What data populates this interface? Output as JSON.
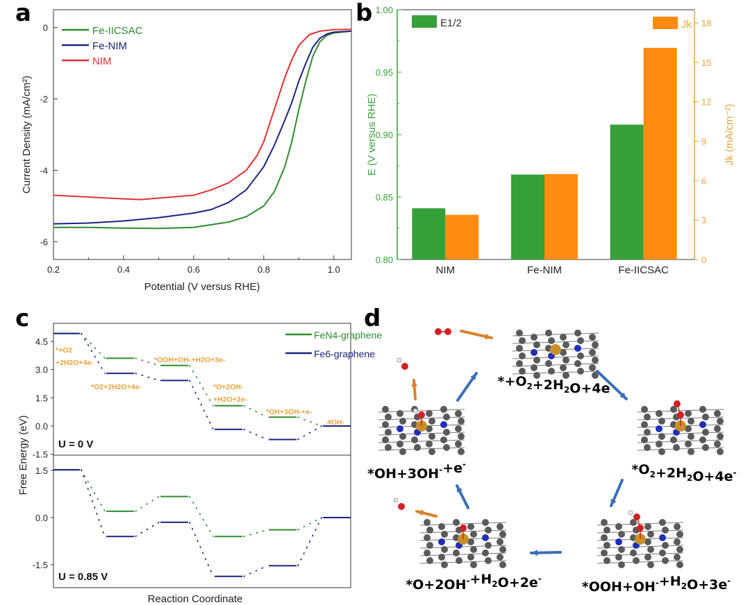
{
  "panel_labels": {
    "a": "a",
    "b": "b",
    "c": "c",
    "d": "d"
  },
  "chart_data": [
    {
      "id": "a",
      "type": "line",
      "title": "",
      "xlabel": "Potential (V versus RHE)",
      "ylabel": "Current Density (mA/cm²)",
      "xlim": [
        0.2,
        1.05
      ],
      "ylim": [
        -6.5,
        0.5
      ],
      "xticks": [
        "0.2",
        "0.4",
        "0.6",
        "0.8",
        "1.0"
      ],
      "xtick_values": [
        0.2,
        0.4,
        0.6,
        0.8,
        1.0
      ],
      "yticks": [
        "0",
        "-2",
        "-4",
        "-6"
      ],
      "ytick_values": [
        0,
        -2,
        -4,
        -6
      ],
      "legend_position": "top-left",
      "series": [
        {
          "name": "Fe-IICSAC",
          "color": "#2e8b2e",
          "x": [
            0.2,
            0.3,
            0.4,
            0.5,
            0.6,
            0.7,
            0.75,
            0.8,
            0.83,
            0.86,
            0.88,
            0.9,
            0.92,
            0.94,
            0.96,
            0.98,
            1.0,
            1.05
          ],
          "y": [
            -5.6,
            -5.6,
            -5.62,
            -5.63,
            -5.6,
            -5.45,
            -5.3,
            -5.0,
            -4.6,
            -3.9,
            -3.2,
            -2.3,
            -1.5,
            -0.8,
            -0.4,
            -0.22,
            -0.15,
            -0.1
          ]
        },
        {
          "name": "Fe-NIM",
          "color": "#1a237e",
          "x": [
            0.2,
            0.3,
            0.4,
            0.5,
            0.6,
            0.65,
            0.7,
            0.75,
            0.8,
            0.83,
            0.86,
            0.88,
            0.9,
            0.92,
            0.94,
            0.96,
            0.98,
            1.0,
            1.05
          ],
          "y": [
            -5.5,
            -5.48,
            -5.42,
            -5.33,
            -5.2,
            -5.1,
            -4.9,
            -4.55,
            -3.9,
            -3.3,
            -2.6,
            -2.1,
            -1.5,
            -1.0,
            -0.55,
            -0.3,
            -0.18,
            -0.13,
            -0.1
          ]
        },
        {
          "name": "NIM",
          "color": "#e03030",
          "x": [
            0.2,
            0.3,
            0.4,
            0.45,
            0.5,
            0.6,
            0.65,
            0.7,
            0.75,
            0.78,
            0.8,
            0.82,
            0.84,
            0.86,
            0.88,
            0.9,
            0.93,
            0.96,
            1.0,
            1.05
          ],
          "y": [
            -4.7,
            -4.75,
            -4.8,
            -4.82,
            -4.78,
            -4.7,
            -4.55,
            -4.35,
            -4.0,
            -3.6,
            -3.2,
            -2.6,
            -2.0,
            -1.4,
            -0.9,
            -0.5,
            -0.2,
            -0.1,
            -0.06,
            -0.05
          ]
        }
      ]
    },
    {
      "id": "b",
      "type": "bar",
      "title": "",
      "categories": [
        "NIM",
        "Fe-NIM",
        "Fe-IICSAC"
      ],
      "xlabel": "",
      "ylabel": "E (V versus RHE)",
      "ylabel2": "Jk (mA/cm⁻²)",
      "ylim": [
        0.8,
        1.0
      ],
      "ylim2": [
        0,
        19
      ],
      "yticks": [
        "0.80",
        "0.85",
        "0.90",
        "0.95",
        "1.00"
      ],
      "ytick_values": [
        0.8,
        0.85,
        0.9,
        0.95,
        1.0
      ],
      "yticks2": [
        "0",
        "3",
        "6",
        "9",
        "12",
        "15",
        "18"
      ],
      "ytick2_values": [
        0,
        3,
        6,
        9,
        12,
        15,
        18
      ],
      "legend_position": "top",
      "series": [
        {
          "name": "E1/2",
          "axis": "left",
          "color": "#36a03a",
          "values": [
            0.841,
            0.868,
            0.908
          ]
        },
        {
          "name": "Jk",
          "axis": "right",
          "color": "#ff8c10",
          "values": [
            3.4,
            6.5,
            16.1
          ]
        }
      ],
      "axis_colors": {
        "left": "#36a03a",
        "right": "#e8a33a"
      }
    },
    {
      "id": "c",
      "type": "line",
      "subtype": "free-energy-diagram",
      "xlabel": "Reaction Coordinate",
      "ylabel": "Free Energy (eV)",
      "legend_position": "top-right",
      "legend": [
        {
          "name": "FeN4-graphene",
          "color": "#2e8b2e"
        },
        {
          "name": "Fe6-graphene",
          "color": "#1a237e"
        }
      ],
      "steps": [
        "*+O2+2H2O+4e-",
        "*O2+2H2O+4e-",
        "*OOH+OH-+H2O+3e-",
        "*O+2OH-+H2O+2e-",
        "*OH+3OH-+e-",
        "4OH-"
      ],
      "step_annotations": [
        {
          "lines": [
            "*+O2",
            "+2H2O+4e-"
          ]
        },
        {
          "lines": [
            "*O2+2H2O+4e-"
          ]
        },
        {
          "lines": [
            "*OOH+OH-+H2O+3e-"
          ]
        },
        {
          "lines": [
            "*O+2OH-",
            "+H2O+2e-"
          ]
        },
        {
          "lines": [
            "*OH+3OH-+e-"
          ]
        },
        {
          "lines": [
            "4OH-"
          ]
        }
      ],
      "subplots": [
        {
          "label": "U = 0 V",
          "ylim": [
            -1.5,
            5.2
          ],
          "yticks": [
            "4.5",
            "3.0",
            "1.5",
            "0.0",
            "-1.5"
          ],
          "ytick_values": [
            4.5,
            3.0,
            1.5,
            0.0,
            -1.5
          ],
          "series": [
            {
              "name": "FeN4-graphene",
              "values": [
                4.92,
                3.6,
                3.22,
                1.08,
                0.47,
                0.0
              ]
            },
            {
              "name": "Fe6-graphene",
              "values": [
                4.92,
                2.8,
                2.42,
                -0.18,
                -0.72,
                0.0
              ]
            }
          ]
        },
        {
          "label": "U = 0.85 V",
          "ylim": [
            -2.25,
            1.75
          ],
          "yticks": [
            "1.5",
            "0.0",
            "-1.5"
          ],
          "ytick_values": [
            1.5,
            0.0,
            -1.5
          ],
          "series": [
            {
              "name": "FeN4-graphene",
              "values": [
                1.52,
                0.2,
                0.67,
                -0.6,
                -0.39,
                0.0
              ]
            },
            {
              "name": "Fe6-graphene",
              "values": [
                1.52,
                -0.6,
                -0.15,
                -1.87,
                -1.53,
                0.0
              ]
            }
          ]
        }
      ]
    }
  ],
  "mechanism": {
    "states": [
      {
        "label_parts": [
          "*+O",
          "2",
          "+2H",
          "2",
          "O+4e",
          "-"
        ]
      },
      {
        "label_parts": [
          "*O",
          "2",
          "+2H",
          "2",
          "O+4e",
          "-"
        ]
      },
      {
        "label_parts": [
          "*OOH+OH",
          "-",
          "+H",
          "2",
          "O+3e",
          "-"
        ]
      },
      {
        "label_parts": [
          "*O+2OH",
          "-",
          "+H",
          "2",
          "O+2e",
          "-"
        ]
      },
      {
        "label_parts": [
          "*OH+3OH",
          "-",
          "+e",
          "-"
        ]
      }
    ],
    "colors": {
      "carbon": "#5a5a5a",
      "nitrogen": "#1f2fb8",
      "iron": "#c8902a",
      "oxygen": "#d42020",
      "hydrogen": "#eeeeee",
      "step_arrow": "#3a6fb5",
      "release_arrow": "#d9822b"
    }
  }
}
